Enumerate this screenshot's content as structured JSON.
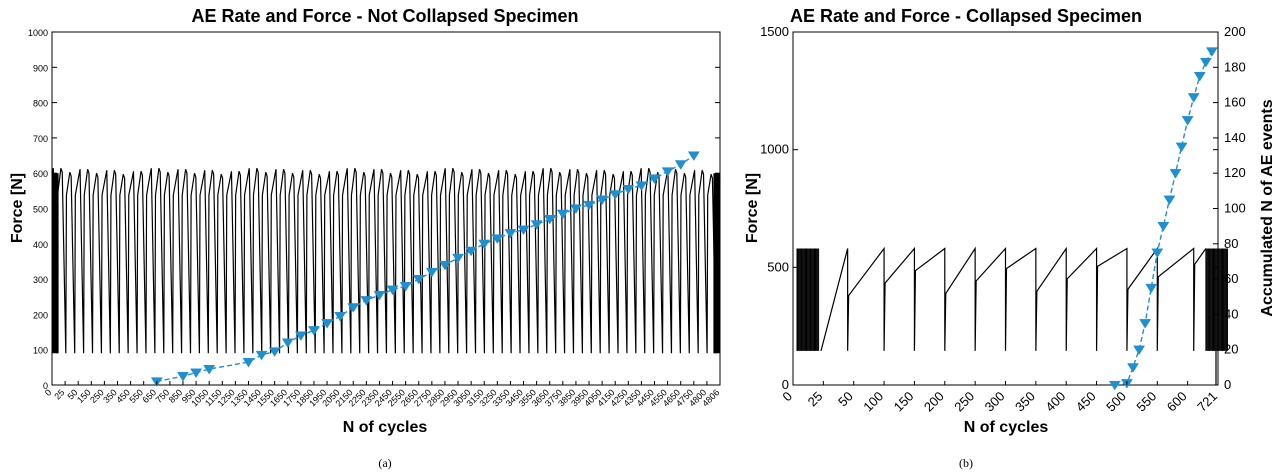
{
  "chart_data": [
    {
      "type": "line",
      "panel_label": "(a)",
      "title": "AE Rate and Force - Not Collapsed Specimen",
      "xlabel": "N of cycles",
      "ylabel": "Force [N]",
      "ylim": [
        0,
        1000
      ],
      "yticks": [
        "0",
        "100",
        "200",
        "300",
        "400",
        "500",
        "600",
        "700",
        "800",
        "900",
        "1000"
      ],
      "xticks": [
        "0",
        "25",
        "50",
        "150",
        "250",
        "350",
        "450",
        "550",
        "650",
        "750",
        "850",
        "950",
        "1050",
        "1150",
        "1250",
        "1350",
        "1450",
        "1550",
        "1650",
        "1750",
        "1850",
        "1950",
        "2050",
        "2150",
        "2250",
        "2350",
        "2450",
        "2550",
        "2650",
        "2750",
        "2850",
        "2950",
        "3050",
        "3150",
        "3250",
        "3350",
        "3450",
        "3550",
        "3650",
        "3750",
        "3850",
        "3950",
        "4050",
        "4150",
        "4250",
        "4350",
        "4450",
        "4550",
        "4650",
        "4750",
        "4800",
        "4806"
      ],
      "force_range": [
        90,
        600
      ],
      "force_cycles_shown": 75,
      "series": [
        {
          "color": "#1f8fd0",
          "marker": "triangle-down",
          "x_tick_index": [
            8,
            10,
            11,
            12,
            15,
            16,
            17,
            18,
            19,
            20,
            21,
            22,
            23,
            24,
            25,
            26,
            27,
            28,
            29,
            30,
            31,
            32,
            33,
            34,
            35,
            36,
            37,
            38,
            39,
            40,
            41,
            42,
            43,
            44,
            45,
            46,
            47,
            48,
            49
          ],
          "values": [
            10,
            25,
            35,
            45,
            65,
            85,
            95,
            120,
            140,
            155,
            175,
            195,
            220,
            240,
            255,
            270,
            280,
            300,
            320,
            340,
            360,
            380,
            400,
            415,
            430,
            440,
            455,
            470,
            485,
            500,
            510,
            525,
            540,
            555,
            565,
            585,
            605,
            625,
            650
          ]
        }
      ]
    },
    {
      "type": "line",
      "panel_label": "(b)",
      "title": "AE Rate and Force - Collapsed Specimen",
      "xlabel": "N of cycles",
      "ylabel": "Force [N]",
      "y2label": "Accumulated N of AE events",
      "ylim": [
        0,
        1500
      ],
      "y2lim": [
        0,
        200
      ],
      "yticks": [
        "0",
        "500",
        "1000",
        "1500"
      ],
      "y2ticks": [
        "0",
        "20",
        "40",
        "60",
        "80",
        "100",
        "120",
        "140",
        "160",
        "180",
        "200"
      ],
      "xticks": [
        "0",
        "25",
        "50",
        "100",
        "150",
        "200",
        "250",
        "300",
        "350",
        "400",
        "450",
        "500",
        "550",
        "600",
        "721"
      ],
      "force_range": [
        145,
        580
      ],
      "series": [
        {
          "color": "#1f8fd0",
          "marker": "triangle-down",
          "x_tick_index": [
            10.6,
            11.0,
            11.2,
            11.4,
            11.6,
            11.8,
            12.0,
            12.2,
            12.4,
            12.6,
            12.8,
            13.0,
            13.2,
            13.4,
            13.6,
            13.8
          ],
          "values": [
            0,
            1,
            10,
            20,
            35,
            55,
            75,
            90,
            105,
            120,
            135,
            150,
            163,
            175,
            183,
            189
          ]
        }
      ]
    }
  ]
}
